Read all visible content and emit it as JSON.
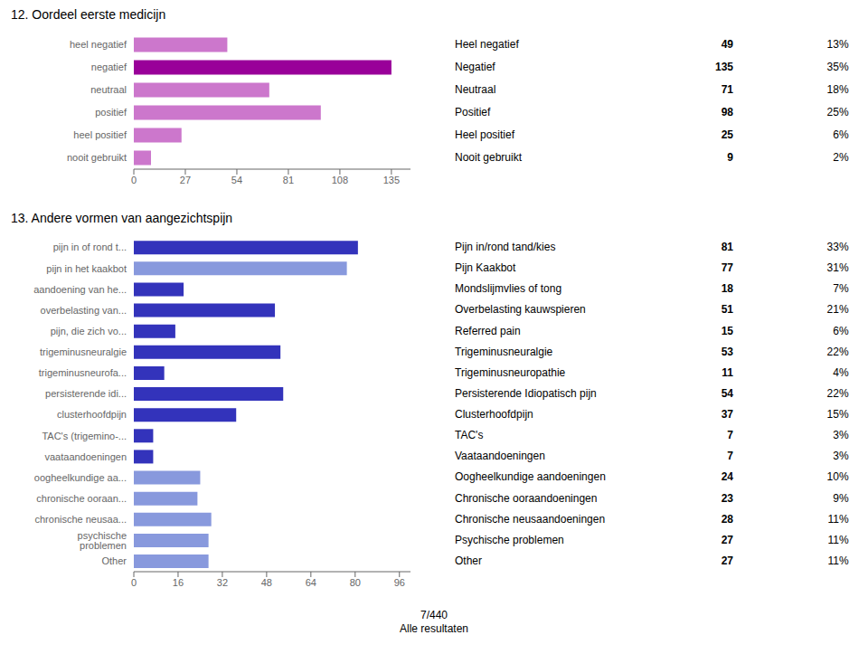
{
  "footer": "7/440\nAlle resultaten",
  "chart_data": [
    {
      "type": "bar",
      "orientation": "horizontal",
      "title": "12. Oordeel eerste medicijn",
      "categories": [
        "heel negatief",
        "negatief",
        "neutraal",
        "positief",
        "heel positief",
        "nooit gebruikt"
      ],
      "values": [
        49,
        135,
        71,
        98,
        25,
        9
      ],
      "colors": [
        "#cc77cc",
        "#990099",
        "#cc77cc",
        "#cc77cc",
        "#cc77cc",
        "#cc77cc"
      ],
      "xlim": [
        0,
        145
      ],
      "xticks": [
        0,
        27,
        54,
        81,
        108,
        135
      ],
      "table": {
        "labels": [
          "Heel negatief",
          "Negatief",
          "Neutraal",
          "Positief",
          "Heel positief",
          "Nooit gebruikt"
        ],
        "values": [
          49,
          135,
          71,
          98,
          25,
          9
        ],
        "shares": [
          {
            "value": 13,
            "label": "13%"
          },
          {
            "value": 35,
            "label": "35%"
          },
          {
            "value": 18,
            "label": "18%"
          },
          {
            "value": 25,
            "label": "25%"
          },
          {
            "value": 6,
            "label": "6%"
          },
          {
            "value": 2,
            "label": "2%"
          }
        ]
      }
    },
    {
      "type": "bar",
      "orientation": "horizontal",
      "title": "13. Andere vormen van aangezichtspijn",
      "categories": [
        "pijn in of rond t...",
        "pijn in het kaakbot",
        "aandoening van he...",
        "overbelasting van...",
        "pijn, die zich vo...",
        "trigeminusneuralgie",
        "trigeminusneurofa...",
        "persisterende idi...",
        "clusterhoofdpijn",
        "TAC's (trigemino-...",
        "vaataandoeningen",
        "oogheelkundige aa...",
        "chronische ooraan...",
        "chronische neusaa...",
        "psychische problemen",
        "Other"
      ],
      "values": [
        81,
        77,
        18,
        51,
        15,
        53,
        11,
        54,
        37,
        7,
        7,
        24,
        23,
        28,
        27,
        27
      ],
      "colors": [
        "#3333bb",
        "#8899dd",
        "#3333bb",
        "#3333bb",
        "#3333bb",
        "#3333bb",
        "#3333bb",
        "#3333bb",
        "#3333bb",
        "#3333bb",
        "#3333bb",
        "#8899dd",
        "#8899dd",
        "#8899dd",
        "#8899dd",
        "#8899dd"
      ],
      "xlim": [
        0,
        100
      ],
      "xticks": [
        0,
        16,
        32,
        48,
        64,
        80,
        96
      ],
      "table": {
        "labels": [
          "Pijn in/rond tand/kies",
          "Pijn Kaakbot",
          "Mondslijmvlies of tong",
          "Overbelasting kauwspieren",
          "Referred pain",
          "Trigeminusneuralgie",
          "Trigeminusneuropathie",
          "Persisterende Idiopatisch pijn",
          "Clusterhoofdpijn",
          "TAC's",
          "Vaataandoeningen",
          "Oogheelkundige aandoeningen",
          "Chronische ooraandoeningen",
          "Chronische neusaandoeningen",
          "Psychische problemen",
          "Other"
        ],
        "values": [
          81,
          77,
          18,
          51,
          15,
          53,
          11,
          54,
          37,
          7,
          7,
          24,
          23,
          28,
          27,
          27
        ],
        "shares": [
          {
            "value": 33,
            "label": "33%"
          },
          {
            "value": 31,
            "label": "31%"
          },
          {
            "value": 7,
            "label": "7%"
          },
          {
            "value": 21,
            "label": "21%"
          },
          {
            "value": 6,
            "label": "6%"
          },
          {
            "value": 22,
            "label": "22%"
          },
          {
            "value": 4,
            "label": "4%"
          },
          {
            "value": 22,
            "label": "22%"
          },
          {
            "value": 15,
            "label": "15%"
          },
          {
            "value": 3,
            "label": "3%"
          },
          {
            "value": 3,
            "label": "3%"
          },
          {
            "value": 10,
            "label": "10%"
          },
          {
            "value": 9,
            "label": "9%"
          },
          {
            "value": 11,
            "label": "11%"
          },
          {
            "value": 11,
            "label": "11%"
          },
          {
            "value": 11,
            "label": "11%"
          }
        ]
      }
    }
  ]
}
